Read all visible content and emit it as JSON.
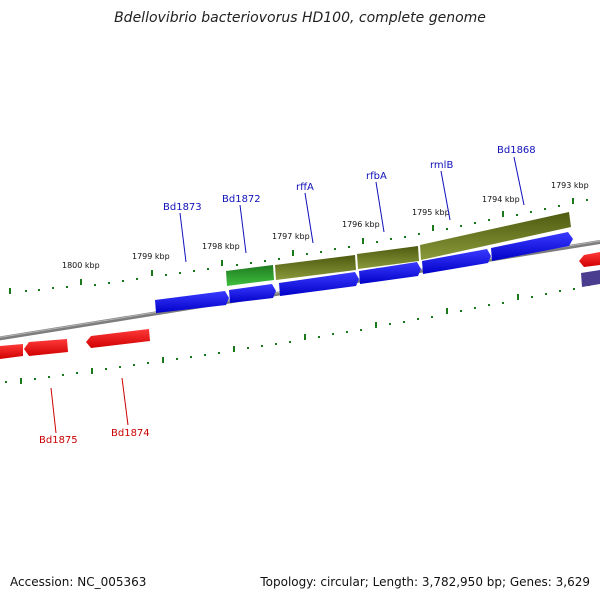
{
  "header": {
    "title": "Bdellovibrio bacteriovorus HD100, complete genome"
  },
  "footer": {
    "accession": "Accession: NC_005363",
    "summary": "Topology: circular; Length: 3,782,950 bp; Genes: 3,629"
  },
  "map": {
    "ticks_outer": [
      "1800 kbp",
      "1799 kbp",
      "1798 kbp",
      "1797 kbp",
      "1796 kbp",
      "1795 kbp",
      "1794 kbp",
      "1793 kbp"
    ],
    "gene_labels_forward": [
      "Bd1873",
      "Bd1872",
      "rffA",
      "rfbA",
      "rmlB",
      "Bd1868"
    ],
    "gene_labels_reverse": [
      "Bd1875",
      "Bd1874"
    ],
    "colors": {
      "forward_gene": "#1010dd",
      "reverse_gene": "#ee1111",
      "operon_green": "#2e8b2e",
      "operon_olive": "#6b7a1e",
      "other_gene": "#4a3d8f",
      "backbone": "#888888",
      "tick": "#1a7a1a",
      "label_forward": "#1010bb",
      "label_reverse": "#cc0000"
    }
  }
}
